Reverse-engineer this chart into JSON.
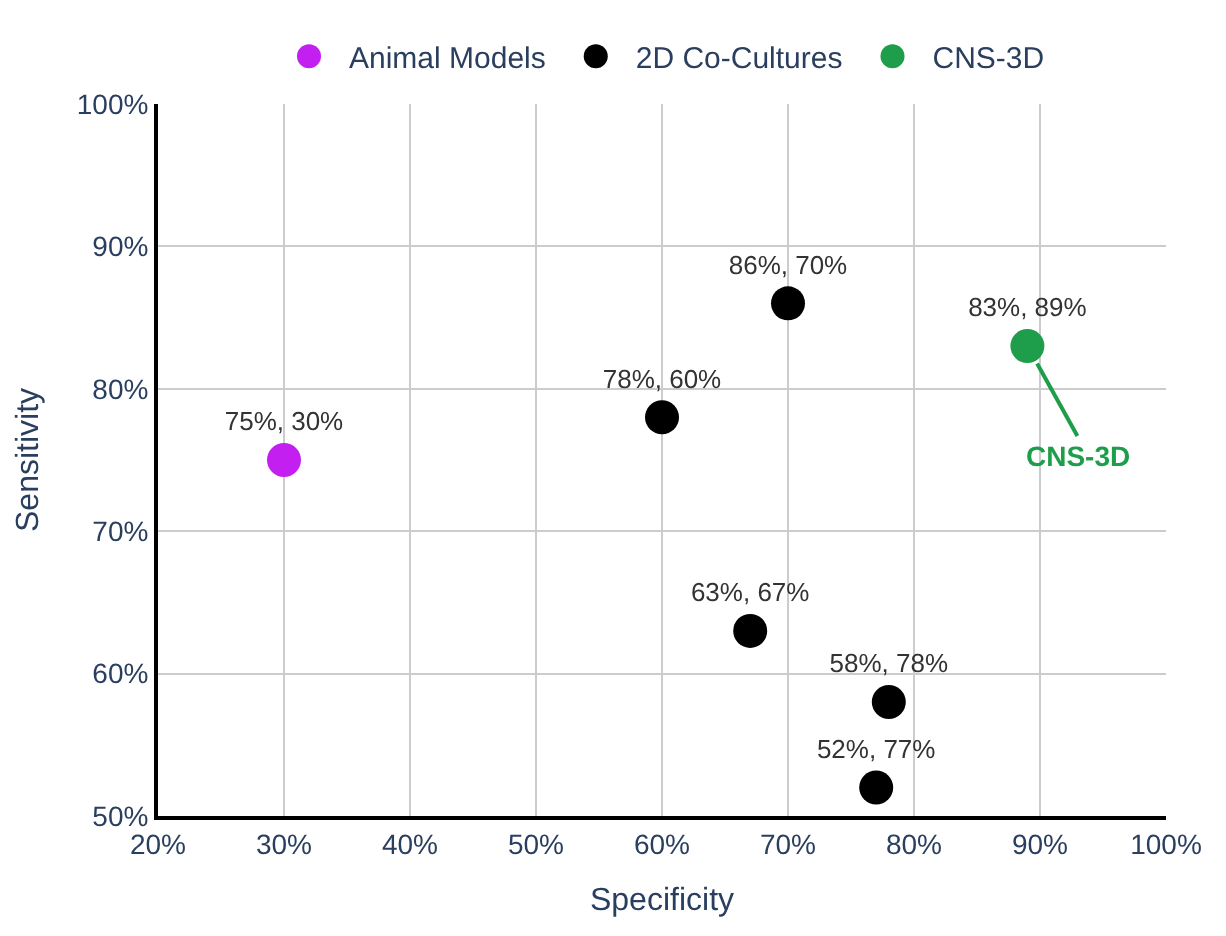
{
  "chart_data": {
    "type": "scatter",
    "xlabel": "Specificity",
    "ylabel": "Sensitivity",
    "xlim": [
      20,
      100
    ],
    "ylim": [
      50,
      100
    ],
    "xticks": [
      {
        "value": 20,
        "label": "20%"
      },
      {
        "value": 30,
        "label": "30%"
      },
      {
        "value": 40,
        "label": "40%"
      },
      {
        "value": 50,
        "label": "50%"
      },
      {
        "value": 60,
        "label": "60%"
      },
      {
        "value": 70,
        "label": "70%"
      },
      {
        "value": 80,
        "label": "80%"
      },
      {
        "value": 90,
        "label": "90%"
      },
      {
        "value": 100,
        "label": "100%"
      }
    ],
    "yticks": [
      {
        "value": 50,
        "label": "50%"
      },
      {
        "value": 60,
        "label": "60%"
      },
      {
        "value": 70,
        "label": "70%"
      },
      {
        "value": 80,
        "label": "80%"
      },
      {
        "value": 90,
        "label": "90%"
      },
      {
        "value": 100,
        "label": "100%"
      }
    ],
    "grid": true,
    "legend": "top",
    "marker": "circle",
    "series": [
      {
        "name": "Animal Models",
        "color": "#c21ff0",
        "x": [
          30
        ],
        "values": [
          75
        ],
        "value_labels": [
          "75%, 30%"
        ]
      },
      {
        "name": "2D Co-Cultures",
        "color": "#000000",
        "x": [
          60,
          70,
          67,
          78,
          77
        ],
        "values": [
          78,
          86,
          63,
          58,
          52
        ],
        "value_labels": [
          "78%, 60%",
          "86%, 70%",
          "63%, 67%",
          "58%, 78%",
          "52%, 77%"
        ]
      },
      {
        "name": "CNS-3D",
        "color": "#1e9e4a",
        "x": [
          89
        ],
        "values": [
          83
        ],
        "value_labels": [
          "83%, 89%"
        ]
      }
    ],
    "annotations": [
      {
        "text": "CNS-3D",
        "x": 89,
        "y": 83
      }
    ]
  }
}
